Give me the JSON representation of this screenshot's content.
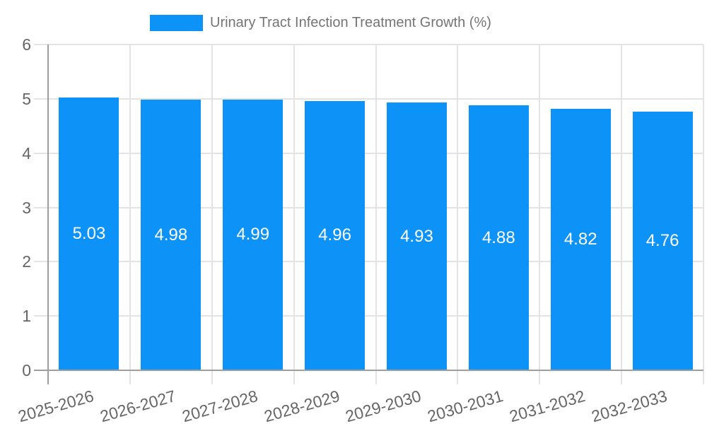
{
  "chart_data": {
    "type": "bar",
    "title": "Urinary Tract Infection Treatment Growth (%)",
    "categories": [
      "2025-2026",
      "2026-2027",
      "2027-2028",
      "2028-2029",
      "2029-2030",
      "2030-2031",
      "2031-2032",
      "2032-2033"
    ],
    "values": [
      5.03,
      4.98,
      4.99,
      4.96,
      4.93,
      4.88,
      4.82,
      4.76
    ],
    "value_labels": [
      "5.03",
      "4.98",
      "4.99",
      "4.96",
      "4.93",
      "4.88",
      "4.82",
      "4.76"
    ],
    "xlabel": "",
    "ylabel": "",
    "ylim": [
      0,
      6
    ],
    "yticks": [
      0,
      1,
      2,
      3,
      4,
      5,
      6
    ],
    "grid": true,
    "legend_position": "top",
    "colors": {
      "bar": "#0d93f8",
      "grid": "#e3e3e3",
      "axis": "#9e9e9e",
      "tick_label": "#666666",
      "title": "#757575",
      "value_label": "#ffffff"
    }
  }
}
